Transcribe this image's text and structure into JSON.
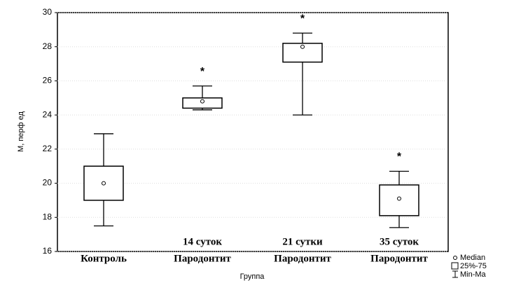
{
  "chart_data": {
    "type": "box",
    "categories": [
      "Контроль",
      "Пародонтит",
      "Пародонтит",
      "Пародонтит"
    ],
    "sublabels": [
      null,
      "14 суток",
      "21 сутки",
      "35 суток"
    ],
    "significance": [
      null,
      "*",
      "*",
      "*"
    ],
    "min": [
      17.5,
      24.3,
      24.0,
      17.4
    ],
    "q1": [
      19.0,
      24.4,
      27.1,
      18.1
    ],
    "median": [
      20.0,
      24.8,
      28.0,
      19.1
    ],
    "q3": [
      21.0,
      25.0,
      28.2,
      19.9
    ],
    "max": [
      22.9,
      25.7,
      28.8,
      20.7
    ],
    "ylabel": "М, перф ед",
    "xlabel": "Группа",
    "ylim": [
      16,
      30
    ],
    "yticks": [
      16,
      18,
      20,
      22,
      24,
      26,
      28,
      30
    ],
    "grid": true,
    "legend": {
      "median": "Median",
      "box": "25%-75",
      "whisker": "Min-Ma"
    }
  }
}
